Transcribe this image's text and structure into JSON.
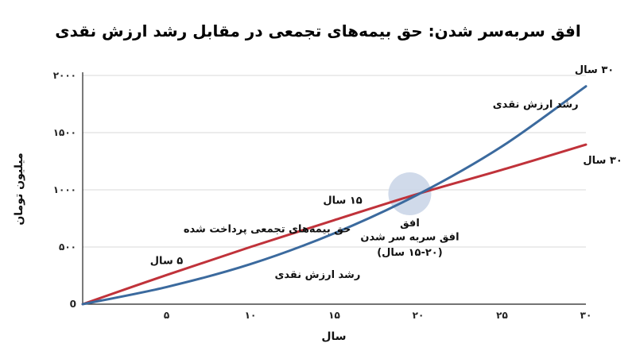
{
  "chart_data": {
    "type": "line",
    "title": "افق سربه‌سر شدن: حق بیمه‌های تجمعی در مقابل رشد ارزش نقدی",
    "xlabel": "سال",
    "ylabel": "میلیون تومان",
    "xlim": [
      0,
      30
    ],
    "ylim": [
      0,
      2000
    ],
    "x_ticks": [
      {
        "value": 5,
        "label": "۵"
      },
      {
        "value": 10,
        "label": "۱۰"
      },
      {
        "value": 15,
        "label": "۱۵"
      },
      {
        "value": 20,
        "label": "۲۰"
      },
      {
        "value": 25,
        "label": "۲۵"
      },
      {
        "value": 30,
        "label": "۳۰"
      }
    ],
    "y_ticks": [
      {
        "value": 0,
        "label": "0"
      },
      {
        "value": 500,
        "label": "۵۰۰"
      },
      {
        "value": 1000,
        "label": "۱۰۰۰"
      },
      {
        "value": 1500,
        "label": "۱۵۰۰"
      },
      {
        "value": 2000,
        "label": "۲۰۰۰"
      }
    ],
    "grid": "horizontal",
    "series": [
      {
        "name": "حق بیمه‌های تجمعی پرداخت شده",
        "color": "#c0323a",
        "x": [
          0,
          5,
          10,
          15,
          20,
          25,
          30
        ],
        "y": [
          0,
          255,
          500,
          735,
          965,
          1175,
          1395
        ]
      },
      {
        "name": "رشد ارزش نقدی",
        "color": "#3b6a9e",
        "x": [
          0,
          5,
          10,
          15,
          20,
          25,
          30
        ],
        "y": [
          0,
          150,
          350,
          620,
          960,
          1380,
          1905
        ]
      }
    ],
    "breakeven": {
      "x": 19.5,
      "y": 965,
      "color": "#c8d3e6"
    },
    "annotations": [
      {
        "id": "premium-5",
        "text": "۵ سال",
        "x": 5,
        "y": 350
      },
      {
        "id": "premium-15",
        "text": "۱۵ سال",
        "x": 15.5,
        "y": 880
      },
      {
        "id": "premium-series-label",
        "text": "حق بیمه‌های تجمعی پرداخت شده",
        "x": 11,
        "y": 630
      },
      {
        "id": "premium-30",
        "text": "۳۰ سال",
        "x": 31,
        "y": 1230
      },
      {
        "id": "cash-bottom",
        "text": "رشد ارزش نقدی",
        "x": 14,
        "y": 230
      },
      {
        "id": "cash-top",
        "text": "رشد ارزش نقدی",
        "x": 27,
        "y": 1720
      },
      {
        "id": "cash-30",
        "text": "۳۰ سال",
        "x": 30.5,
        "y": 2020
      },
      {
        "id": "bep-1",
        "text": "افق",
        "x": 19.5,
        "y": 680
      },
      {
        "id": "bep-2",
        "text": "افق سربه سر شدن",
        "x": 19.5,
        "y": 560
      },
      {
        "id": "bep-3",
        "text": "(۱۵-۲۰ سال)",
        "x": 19.5,
        "y": 425
      }
    ]
  }
}
